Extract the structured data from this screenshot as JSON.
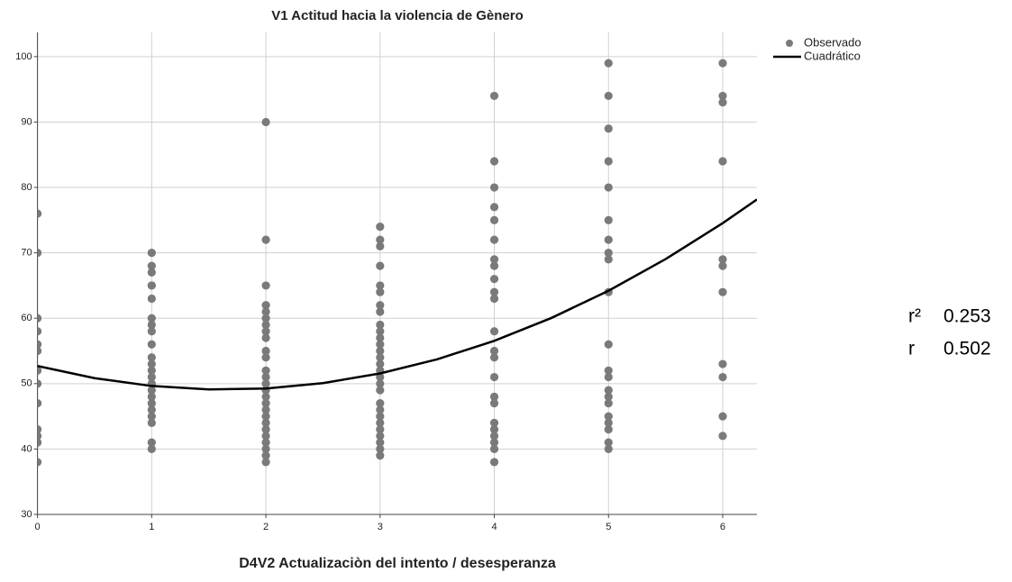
{
  "chart_data": {
    "type": "scatter",
    "title": "V1 Actitud hacia la violencia de Gènero",
    "xlabel": "D4V2 Actualizaciòn del intento / desesperanza",
    "xlim": [
      0,
      6.3
    ],
    "xticks": [
      0,
      1,
      2,
      3,
      4,
      5,
      6
    ],
    "ylim": [
      30,
      103.7
    ],
    "yticks": [
      30,
      40,
      50,
      60,
      70,
      80,
      90,
      100
    ],
    "grid": true,
    "legend": "top-right",
    "series": [
      {
        "name": "Observado",
        "type": "scatter",
        "color": "#7a7a7a",
        "x": [
          0,
          0,
          0,
          0,
          0,
          0,
          0,
          0,
          0,
          0,
          0,
          0,
          0,
          1,
          1,
          1,
          1,
          1,
          1,
          1,
          1,
          1,
          1,
          1,
          1,
          1,
          1,
          1,
          1,
          1,
          1,
          1,
          1,
          1,
          1,
          1,
          2,
          2,
          2,
          2,
          2,
          2,
          2,
          2,
          2,
          2,
          2,
          2,
          2,
          2,
          2,
          2,
          2,
          2,
          2,
          2,
          2,
          2,
          2,
          2,
          2,
          2,
          3,
          3,
          3,
          3,
          3,
          3,
          3,
          3,
          3,
          3,
          3,
          3,
          3,
          3,
          3,
          3,
          3,
          3,
          3,
          3,
          3,
          3,
          3,
          3,
          3,
          3,
          3,
          3,
          4,
          4,
          4,
          4,
          4,
          4,
          4,
          4,
          4,
          4,
          4,
          4,
          4,
          4,
          4,
          4,
          4,
          4,
          4,
          4,
          4,
          4,
          4,
          5,
          5,
          5,
          5,
          5,
          5,
          5,
          5,
          5,
          5,
          5,
          5,
          5,
          5,
          5,
          5,
          5,
          5,
          5,
          5,
          5,
          6,
          6,
          6,
          6,
          6,
          6,
          6,
          6,
          6,
          6,
          6
        ],
        "values": [
          76,
          70,
          60,
          58,
          56,
          55,
          52,
          50,
          47,
          43,
          42,
          41,
          38,
          70,
          68,
          67,
          65,
          65,
          63,
          60,
          59,
          58,
          56,
          54,
          53,
          52,
          51,
          50,
          49,
          48,
          47,
          46,
          45,
          44,
          41,
          40,
          90,
          72,
          65,
          62,
          61,
          60,
          59,
          58,
          57,
          55,
          54,
          52,
          51,
          50,
          49,
          48,
          47,
          46,
          45,
          44,
          43,
          42,
          41,
          40,
          39,
          38,
          74,
          72,
          71,
          68,
          65,
          64,
          62,
          61,
          59,
          58,
          57,
          56,
          55,
          54,
          53,
          52,
          51,
          50,
          49,
          47,
          46,
          45,
          44,
          43,
          42,
          41,
          40,
          39,
          94,
          84,
          80,
          77,
          75,
          72,
          69,
          68,
          66,
          64,
          63,
          58,
          55,
          54,
          51,
          48,
          47,
          44,
          43,
          42,
          41,
          40,
          38,
          99,
          94,
          89,
          84,
          80,
          75,
          72,
          70,
          69,
          64,
          56,
          52,
          51,
          49,
          48,
          47,
          45,
          44,
          43,
          41,
          40,
          99,
          94,
          93,
          84,
          69,
          68,
          64,
          53,
          51,
          45,
          42
        ]
      },
      {
        "name": "Cuadrático",
        "type": "line",
        "color": "#000000",
        "x": [
          0,
          0.5,
          1,
          1.5,
          2,
          2.5,
          3,
          3.5,
          4,
          4.5,
          5,
          5.5,
          6,
          6.3
        ],
        "values": [
          52.7,
          50.84,
          49.64,
          49.12,
          49.26,
          50.08,
          51.56,
          53.72,
          56.54,
          60.04,
          64.2,
          69.04,
          74.54,
          78.16
        ]
      }
    ],
    "stats": [
      {
        "label": "r²",
        "value": 0.253
      },
      {
        "label": "r",
        "value": 0.502
      }
    ]
  }
}
